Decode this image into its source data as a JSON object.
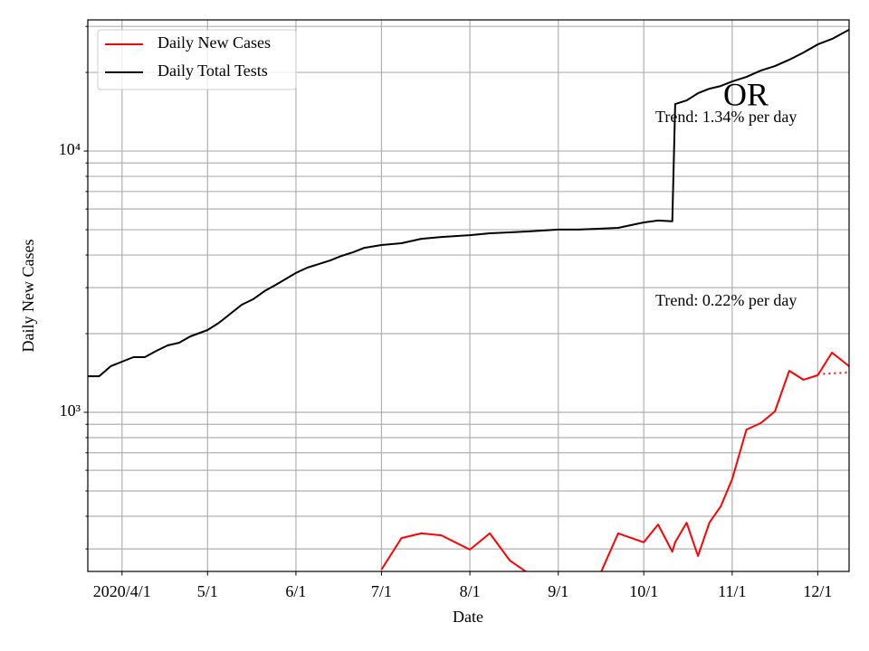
{
  "chart_data": {
    "type": "line",
    "title": "OR",
    "xlabel": "Date",
    "ylabel": "Daily New Cases",
    "log_y": true,
    "grid": true,
    "legend": "upper left",
    "x": [
      "2020-03-20",
      "2020-03-24",
      "2020-03-28",
      "2020-04-01",
      "2020-04-05",
      "2020-04-09",
      "2020-04-13",
      "2020-04-17",
      "2020-04-21",
      "2020-04-25",
      "2020-05-01",
      "2020-05-05",
      "2020-05-09",
      "2020-05-13",
      "2020-05-17",
      "2020-05-21",
      "2020-05-25",
      "2020-06-01",
      "2020-06-05",
      "2020-06-09",
      "2020-06-13",
      "2020-06-17",
      "2020-06-21",
      "2020-06-25",
      "2020-07-01",
      "2020-07-08",
      "2020-07-15",
      "2020-07-22",
      "2020-08-01",
      "2020-08-08",
      "2020-08-15",
      "2020-08-22",
      "2020-09-01",
      "2020-09-08",
      "2020-09-15",
      "2020-09-22",
      "2020-10-01",
      "2020-10-06",
      "2020-10-11",
      "2020-10-12",
      "2020-10-16",
      "2020-10-20",
      "2020-10-24",
      "2020-10-28",
      "2020-11-01",
      "2020-11-06",
      "2020-11-11",
      "2020-11-16",
      "2020-11-21",
      "2020-11-26",
      "2020-12-01",
      "2020-12-06",
      "2020-12-12"
    ],
    "series": [
      {
        "name": "Daily New Cases",
        "color": "#ff0000",
        "values": [
          null,
          null,
          null,
          null,
          null,
          null,
          null,
          null,
          null,
          null,
          null,
          null,
          null,
          null,
          null,
          null,
          null,
          null,
          null,
          null,
          null,
          null,
          null,
          null,
          250,
          330,
          344,
          338,
          298,
          344,
          271,
          240,
          231,
          213,
          231,
          344,
          318,
          372,
          293,
          318,
          378,
          282,
          378,
          437,
          555,
          859,
          909,
          1008,
          1442,
          1332,
          1387,
          1692,
          1501
        ]
      },
      {
        "name": "Daily Total Tests",
        "color": "#000000",
        "values": [
          1374,
          1374,
          1500,
          1563,
          1626,
          1626,
          1718,
          1803,
          1846,
          1953,
          2066,
          2201,
          2384,
          2582,
          2709,
          2912,
          3078,
          3414,
          3580,
          3692,
          3812,
          3970,
          4096,
          4263,
          4367,
          4437,
          4616,
          4690,
          4766,
          4844,
          4884,
          4925,
          5004,
          5004,
          5040,
          5080,
          5333,
          5420,
          5380,
          15130,
          15620,
          16650,
          17320,
          17750,
          18470,
          19220,
          20320,
          21150,
          22350,
          23820,
          25590,
          26850,
          29120
        ]
      }
    ],
    "trend_line": {
      "color": "#ff0000",
      "x": [
        "2020-12-01",
        "2020-12-12"
      ],
      "values": [
        1400,
        1420
      ]
    },
    "annotations": [
      "Trend: 1.34% per day",
      "Trend: 0.22% per day"
    ],
    "xlim": [
      "2020-03-20",
      "2020-12-12"
    ],
    "xticks": [
      {
        "value": "2020-04-01",
        "label": "2020/4/1"
      },
      {
        "value": "2020-05-01",
        "label": "5/1"
      },
      {
        "value": "2020-06-01",
        "label": "6/1"
      },
      {
        "value": "2020-07-01",
        "label": "7/1"
      },
      {
        "value": "2020-08-01",
        "label": "8/1"
      },
      {
        "value": "2020-09-01",
        "label": "9/1"
      },
      {
        "value": "2020-10-01",
        "label": "10/1"
      },
      {
        "value": "2020-11-01",
        "label": "11/1"
      },
      {
        "value": "2020-12-01",
        "label": "12/1"
      }
    ],
    "ylim": [
      246,
      31770
    ],
    "yticks": [
      {
        "value": 1000,
        "label": "10³"
      },
      {
        "value": 10000,
        "label": "10⁴"
      }
    ],
    "yminorticks": [
      300,
      400,
      500,
      600,
      700,
      800,
      900,
      2000,
      3000,
      4000,
      5000,
      6000,
      7000,
      8000,
      9000,
      20000,
      30000
    ]
  }
}
